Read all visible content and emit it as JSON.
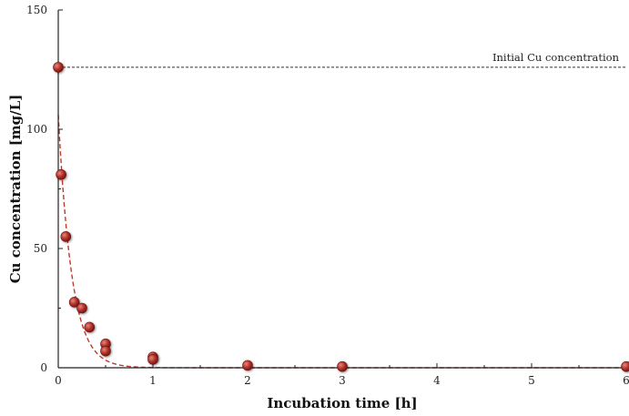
{
  "chart_data": {
    "type": "scatter",
    "xlabel": "Incubation time [h]",
    "ylabel": "Cu concentration [mg/L]",
    "xlim": [
      0,
      6
    ],
    "ylim": [
      0,
      150
    ],
    "x_ticks": [
      0,
      1,
      2,
      3,
      4,
      5,
      6
    ],
    "y_ticks": [
      0,
      50,
      100,
      150
    ],
    "grid": false,
    "legend": "none",
    "points": [
      {
        "x": 0.0,
        "y": 126
      },
      {
        "x": 0.03,
        "y": 81
      },
      {
        "x": 0.08,
        "y": 55
      },
      {
        "x": 0.17,
        "y": 27.5
      },
      {
        "x": 0.25,
        "y": 25
      },
      {
        "x": 0.33,
        "y": 17
      },
      {
        "x": 0.5,
        "y": 10
      },
      {
        "x": 0.5,
        "y": 7
      },
      {
        "x": 1.0,
        "y": 4.5
      },
      {
        "x": 1.0,
        "y": 3.5
      },
      {
        "x": 2.0,
        "y": 1
      },
      {
        "x": 3.0,
        "y": 0.5
      },
      {
        "x": 6.0,
        "y": 0.5
      }
    ],
    "fit_curve": {
      "style": "dashed",
      "color": "#c0392b",
      "y0": 106,
      "decay_rate_per_h": 7.0
    },
    "reference_line": {
      "y": 126,
      "style": "dotted",
      "color": "#333333",
      "label": "Initial Cu concentration"
    },
    "colors": {
      "point_fill": "#b0302a",
      "point_dark": "#6e1410",
      "point_highlight": "#e8867a",
      "axis": "#222222"
    }
  }
}
